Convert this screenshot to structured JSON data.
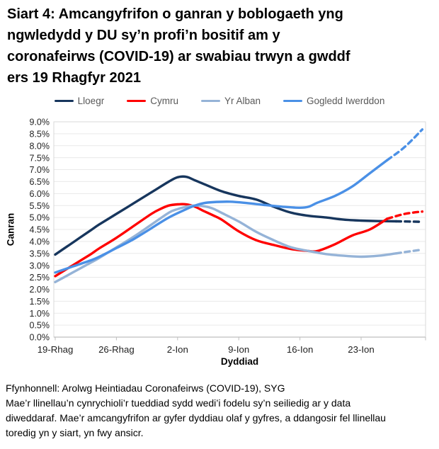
{
  "title_lines": [
    "Siart 4: Amcangyfrifon o ganran y boblogaeth yng",
    "ngwledydd y DU sy’n profi’n bositif am y",
    "coronafeirws (COVID-19) ar swabiau trwyn a gwddf",
    "ers 19 Rhagfyr 2021"
  ],
  "axis": {
    "y_title": "Canran",
    "x_title": "Dyddiad"
  },
  "footer": {
    "source": "Ffynhonnell: Arolwg Heintiadau Coronafeirws (COVID-19), SYG",
    "note_lines": [
      "Mae’r llinellau’n cynrychioli’r tueddiad sydd wedi’i fodelu sy’n seiliedig ar y data",
      "diweddaraf. Mae’r amcangyfrifon ar gyfer dyddiau olaf y gyfres, a ddangosir fel llinellau",
      "toredig yn y siart, yn fwy ansicr."
    ]
  },
  "chart_data": {
    "type": "line",
    "title": "Siart 4: Amcangyfrifon o ganran y boblogaeth yng ngwledydd y DU sy’n profi’n bositif am y coronafeirws (COVID-19) ar swabiau trwyn a gwddf ers 19 Rhagfyr 2021",
    "xlabel": "Dyddiad",
    "ylabel": "Canran",
    "ylim": [
      0,
      9
    ],
    "grid": true,
    "legend_position": "top",
    "y_tick_labels": [
      "0.0%",
      "0.5%",
      "1.0%",
      "1.5%",
      "2.0%",
      "2.5%",
      "3.0%",
      "3.5%",
      "4.0%",
      "4.5%",
      "5.0%",
      "5.5%",
      "6.0%",
      "6.5%",
      "7.0%",
      "7.5%",
      "8.0%",
      "8.5%",
      "9.0%"
    ],
    "x_ticks": [
      {
        "label": "19-Rhag",
        "day": 0
      },
      {
        "label": "26-Rhag",
        "day": 7
      },
      {
        "label": "2-Ion",
        "day": 14
      },
      {
        "label": "9-Ion",
        "day": 21
      },
      {
        "label": "16-Ion",
        "day": 28
      },
      {
        "label": "23-Ion",
        "day": 35
      }
    ],
    "x_domain_days": [
      0,
      42
    ],
    "x_unit": "dyddiau ers 19 Rhagfyr 2021",
    "colors": {
      "gridline": "#E9E9E9",
      "plot_border": "#D9D9D9",
      "axis_line": "#BFBFBF",
      "tick_text": "#1F1F1F",
      "legend_text": "#595959"
    },
    "series": [
      {
        "name": "Lloegr",
        "color": "#17365D",
        "dash_from_day": 39,
        "points": [
          [
            0,
            3.45
          ],
          [
            2,
            3.95
          ],
          [
            4,
            4.45
          ],
          [
            5,
            4.7
          ],
          [
            7,
            5.15
          ],
          [
            9,
            5.6
          ],
          [
            11,
            6.05
          ],
          [
            13,
            6.5
          ],
          [
            14,
            6.68
          ],
          [
            15,
            6.7
          ],
          [
            16,
            6.55
          ],
          [
            17,
            6.4
          ],
          [
            19,
            6.1
          ],
          [
            21,
            5.9
          ],
          [
            23,
            5.75
          ],
          [
            25,
            5.45
          ],
          [
            27,
            5.2
          ],
          [
            29,
            5.07
          ],
          [
            31,
            5.0
          ],
          [
            33,
            4.91
          ],
          [
            35,
            4.87
          ],
          [
            37,
            4.85
          ],
          [
            39,
            4.84
          ],
          [
            42,
            4.82
          ]
        ]
      },
      {
        "name": "Cymru",
        "color": "#FF0000",
        "dash_from_day": 38,
        "points": [
          [
            0,
            2.55
          ],
          [
            2,
            3.0
          ],
          [
            4,
            3.45
          ],
          [
            5,
            3.7
          ],
          [
            7,
            4.15
          ],
          [
            9,
            4.65
          ],
          [
            11,
            5.15
          ],
          [
            12,
            5.35
          ],
          [
            13,
            5.5
          ],
          [
            14,
            5.55
          ],
          [
            15,
            5.55
          ],
          [
            16,
            5.45
          ],
          [
            17,
            5.27
          ],
          [
            18,
            5.1
          ],
          [
            19,
            4.92
          ],
          [
            21,
            4.42
          ],
          [
            23,
            4.05
          ],
          [
            25,
            3.85
          ],
          [
            27,
            3.68
          ],
          [
            29,
            3.6
          ],
          [
            30,
            3.6
          ],
          [
            32,
            3.88
          ],
          [
            34,
            4.25
          ],
          [
            36,
            4.5
          ],
          [
            38,
            4.95
          ],
          [
            40,
            5.15
          ],
          [
            42,
            5.25
          ]
        ]
      },
      {
        "name": "Yr Alban",
        "color": "#95B3D7",
        "dash_from_day": 39,
        "points": [
          [
            0,
            2.3
          ],
          [
            2,
            2.7
          ],
          [
            4,
            3.1
          ],
          [
            5,
            3.3
          ],
          [
            7,
            3.75
          ],
          [
            9,
            4.2
          ],
          [
            11,
            4.7
          ],
          [
            13,
            5.2
          ],
          [
            14,
            5.35
          ],
          [
            15,
            5.45
          ],
          [
            16,
            5.5
          ],
          [
            17,
            5.47
          ],
          [
            18,
            5.38
          ],
          [
            19,
            5.2
          ],
          [
            21,
            4.83
          ],
          [
            23,
            4.4
          ],
          [
            25,
            4.05
          ],
          [
            27,
            3.75
          ],
          [
            29,
            3.6
          ],
          [
            31,
            3.47
          ],
          [
            33,
            3.4
          ],
          [
            35,
            3.36
          ],
          [
            37,
            3.4
          ],
          [
            39,
            3.5
          ],
          [
            42,
            3.66
          ]
        ]
      },
      {
        "name": "Gogledd Iwerddon",
        "color": "#4A90E6",
        "dash_from_day": 38,
        "points": [
          [
            0,
            2.7
          ],
          [
            2,
            2.95
          ],
          [
            4,
            3.2
          ],
          [
            5,
            3.35
          ],
          [
            7,
            3.72
          ],
          [
            9,
            4.1
          ],
          [
            11,
            4.55
          ],
          [
            13,
            5.0
          ],
          [
            15,
            5.35
          ],
          [
            16,
            5.5
          ],
          [
            17,
            5.6
          ],
          [
            18,
            5.64
          ],
          [
            20,
            5.66
          ],
          [
            22,
            5.6
          ],
          [
            24,
            5.52
          ],
          [
            26,
            5.45
          ],
          [
            28,
            5.41
          ],
          [
            29,
            5.45
          ],
          [
            30,
            5.62
          ],
          [
            32,
            5.9
          ],
          [
            34,
            6.3
          ],
          [
            36,
            6.85
          ],
          [
            38,
            7.4
          ],
          [
            40,
            7.95
          ],
          [
            42,
            8.68
          ]
        ]
      }
    ]
  }
}
